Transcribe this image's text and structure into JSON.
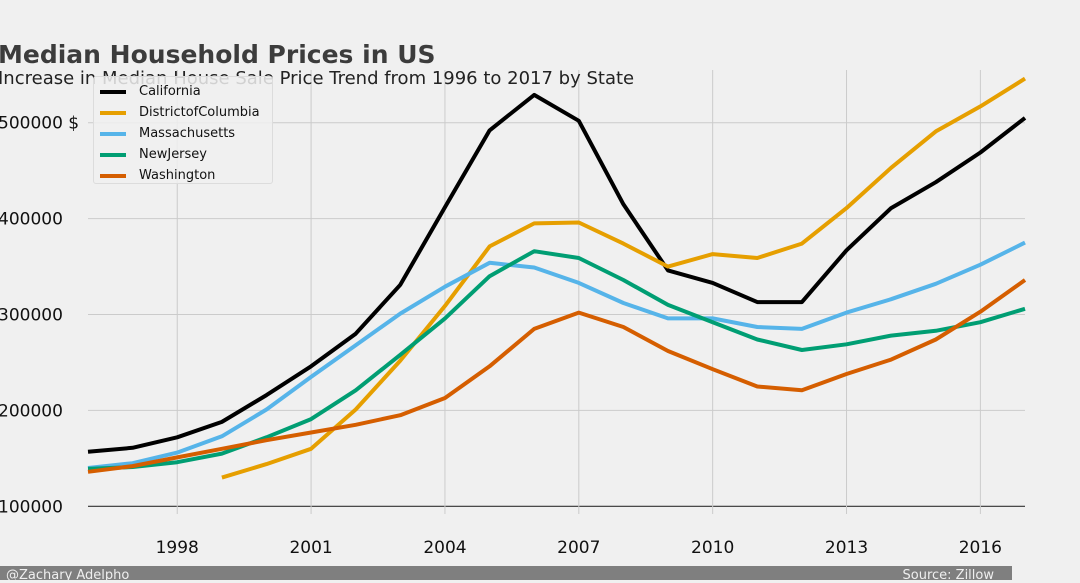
{
  "title": "Median Household Prices in US",
  "subtitle": "Increase in Median House Sale Price Trend from 1996 to 2017 by State",
  "footer": {
    "left": "@Zachary Adelpho",
    "right": "Source: Zillow"
  },
  "chart_data": {
    "type": "line",
    "title": "Median Household Prices in US",
    "subtitle": "Increase in Median House Sale Price Trend from 1996 to 2017 by State",
    "xlabel": "",
    "ylabel": "",
    "xlim": [
      1996,
      2017
    ],
    "ylim": [
      92000,
      555000
    ],
    "xticks": [
      1998,
      2001,
      2004,
      2007,
      2010,
      2013,
      2016
    ],
    "yticks": [
      100000,
      200000,
      300000,
      400000,
      500000
    ],
    "ytick_labels": [
      "100000",
      "200000",
      "300000",
      "400000",
      "500000 $"
    ],
    "grid": true,
    "legend_position": "top-left",
    "x": [
      1996,
      1997,
      1998,
      1999,
      2000,
      2001,
      2002,
      2003,
      2004,
      2005,
      2006,
      2007,
      2008,
      2009,
      2010,
      2011,
      2012,
      2013,
      2014,
      2015,
      2016,
      2017
    ],
    "series": [
      {
        "name": "California",
        "color": "#000000",
        "values": [
          157000,
          161000,
          172000,
          188000,
          216000,
          246000,
          280000,
          331000,
          412000,
          492000,
          529000,
          502000,
          415000,
          346000,
          333000,
          313000,
          313000,
          367000,
          411000,
          438000,
          469000,
          505000
        ]
      },
      {
        "name": "DistrictofColumbia",
        "color": "#e69f00",
        "values": [
          null,
          null,
          null,
          130000,
          144000,
          160000,
          201000,
          252000,
          309000,
          371000,
          395000,
          396000,
          374000,
          350000,
          363000,
          359000,
          374000,
          411000,
          453000,
          491000,
          517000,
          546000
        ]
      },
      {
        "name": "Massachusetts",
        "color": "#56b4e9",
        "values": [
          140000,
          145000,
          156000,
          173000,
          201000,
          235000,
          268000,
          301000,
          329000,
          354000,
          349000,
          333000,
          312000,
          296000,
          296000,
          287000,
          285000,
          302000,
          316000,
          332000,
          352000,
          375000
        ]
      },
      {
        "name": "NewJersey",
        "color": "#009e73",
        "values": [
          139000,
          141000,
          146000,
          155000,
          172000,
          191000,
          221000,
          258000,
          296000,
          340000,
          366000,
          359000,
          336000,
          310000,
          292000,
          274000,
          263000,
          269000,
          278000,
          283000,
          292000,
          306000
        ]
      },
      {
        "name": "Washington",
        "color": "#d55e00",
        "values": [
          136000,
          142000,
          151000,
          160000,
          169000,
          177000,
          185000,
          195000,
          213000,
          246000,
          285000,
          302000,
          287000,
          262000,
          243000,
          225000,
          221000,
          238000,
          253000,
          274000,
          303000,
          336000
        ]
      }
    ]
  }
}
